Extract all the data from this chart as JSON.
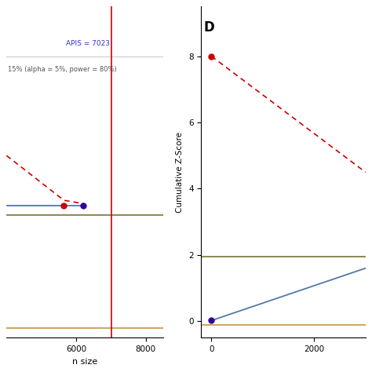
{
  "left_panel": {
    "xlim": [
      4000,
      8500
    ],
    "ylim": [
      0.0,
      10.0
    ],
    "xticks": [
      6000,
      8000
    ],
    "xlabel": "n size",
    "annotation_apis": "APIS = 7023",
    "annotation_rri": "15% (alpha = 5%, power = 80%)",
    "apis_x": 7023,
    "gray_hline_top_y": 8.5,
    "blue_line_x": [
      4000,
      5650
    ],
    "blue_line_y": [
      4.0,
      4.0
    ],
    "solid_line_x": [
      5650,
      6200
    ],
    "solid_line_y": [
      4.0,
      4.0
    ],
    "dashed_line_x": [
      4000,
      5650,
      6200
    ],
    "dashed_line_y": [
      5.5,
      4.15,
      4.05
    ],
    "olive_hline_y": 3.7,
    "orange_hline_y": 0.3,
    "red_vline_x": 7023,
    "dot1_x": 5650,
    "dot1_y": 4.0,
    "dot2_x": 6200,
    "dot2_y": 4.0,
    "dot1_color": "#cc0000",
    "dot2_color": "#330099"
  },
  "right_panel": {
    "xlim": [
      -200,
      3000
    ],
    "ylim": [
      -0.5,
      9.5
    ],
    "xticks": [
      0,
      2000
    ],
    "yticks": [
      0,
      2,
      4,
      6,
      8
    ],
    "ylabel": "Cumulative Z-Score",
    "label_D": "D",
    "dashed_line_x": [
      0,
      3000
    ],
    "dashed_line_y": [
      8.0,
      4.5
    ],
    "solid_line_x": [
      0,
      3000
    ],
    "solid_line_y": [
      0.02,
      1.6
    ],
    "olive_hline_y": 1.96,
    "orange_hline_y": -0.1,
    "dot1_x": 0,
    "dot1_y": 8.0,
    "dot2_x": 0,
    "dot2_y": 0.02,
    "dot1_color": "#cc0000",
    "dot2_color": "#330099"
  },
  "background_color": "#ffffff",
  "red_color": "#cc0000",
  "steel_blue": "#5577aa",
  "olive_color": "#808040",
  "orange_color": "#c8a050",
  "annotation_color_blue": "#3333cc",
  "annotation_color_gray": "#555555"
}
